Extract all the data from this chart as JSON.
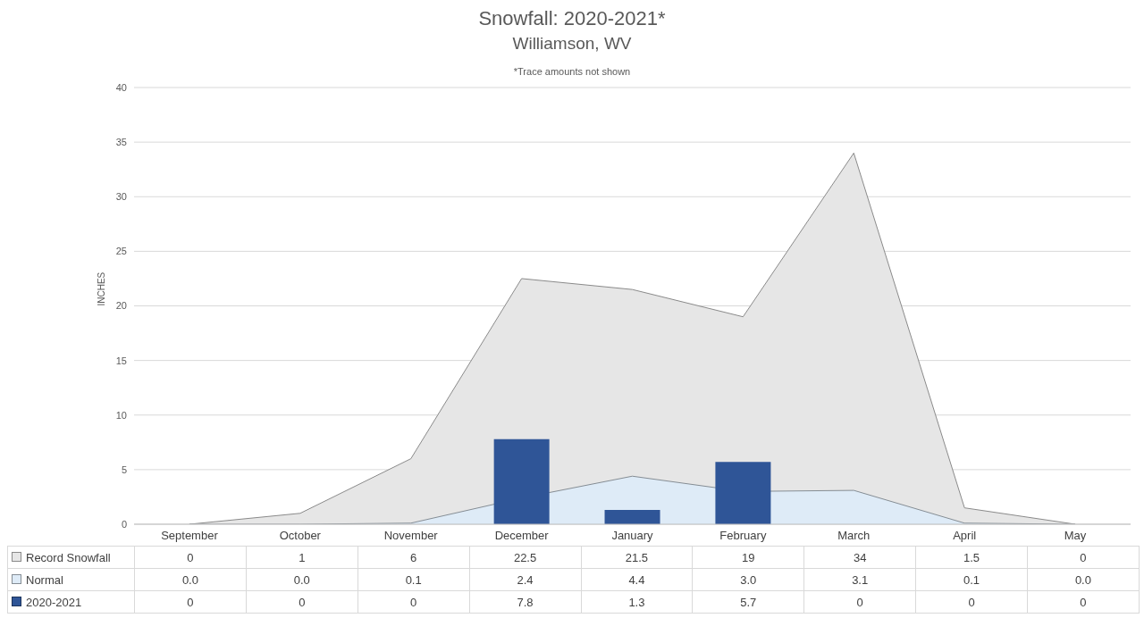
{
  "chart_data": {
    "type": "area",
    "title": "Snowfall: 2020-2021*",
    "subtitle": "Williamson, WV",
    "annotations": [
      "*Trace amounts not shown"
    ],
    "ylabel": "INCHES",
    "categories": [
      "September",
      "October",
      "November",
      "December",
      "January",
      "February",
      "March",
      "April",
      "May"
    ],
    "series": [
      {
        "name": "Record Snowfall",
        "color": "#e6e6e6",
        "values": [
          0,
          1,
          6,
          22.5,
          21.5,
          19,
          34,
          1.5,
          0
        ],
        "value_labels": [
          "0",
          "1",
          "6",
          "22.5",
          "21.5",
          "19",
          "34",
          "1.5",
          "0"
        ]
      },
      {
        "name": "Normal",
        "color": "#deebf7",
        "values": [
          0.0,
          0.0,
          0.1,
          2.4,
          4.4,
          3.0,
          3.1,
          0.1,
          0.0
        ],
        "value_labels": [
          "0.0",
          "0.0",
          "0.1",
          "2.4",
          "4.4",
          "3.0",
          "3.1",
          "0.1",
          "0.0"
        ]
      },
      {
        "name": "2020-2021",
        "type": "bar",
        "color": "#2f5597",
        "values": [
          0,
          0,
          0,
          7.8,
          1.3,
          5.7,
          0,
          0,
          0
        ],
        "value_labels": [
          "0",
          "0",
          "0",
          "7.8",
          "1.3",
          "5.7",
          "0",
          "0",
          "0"
        ]
      }
    ],
    "ylim": [
      0,
      40
    ],
    "yticks": [
      0,
      5,
      10,
      15,
      20,
      25,
      30,
      35,
      40
    ],
    "grid": "y",
    "legend": "bottom"
  }
}
